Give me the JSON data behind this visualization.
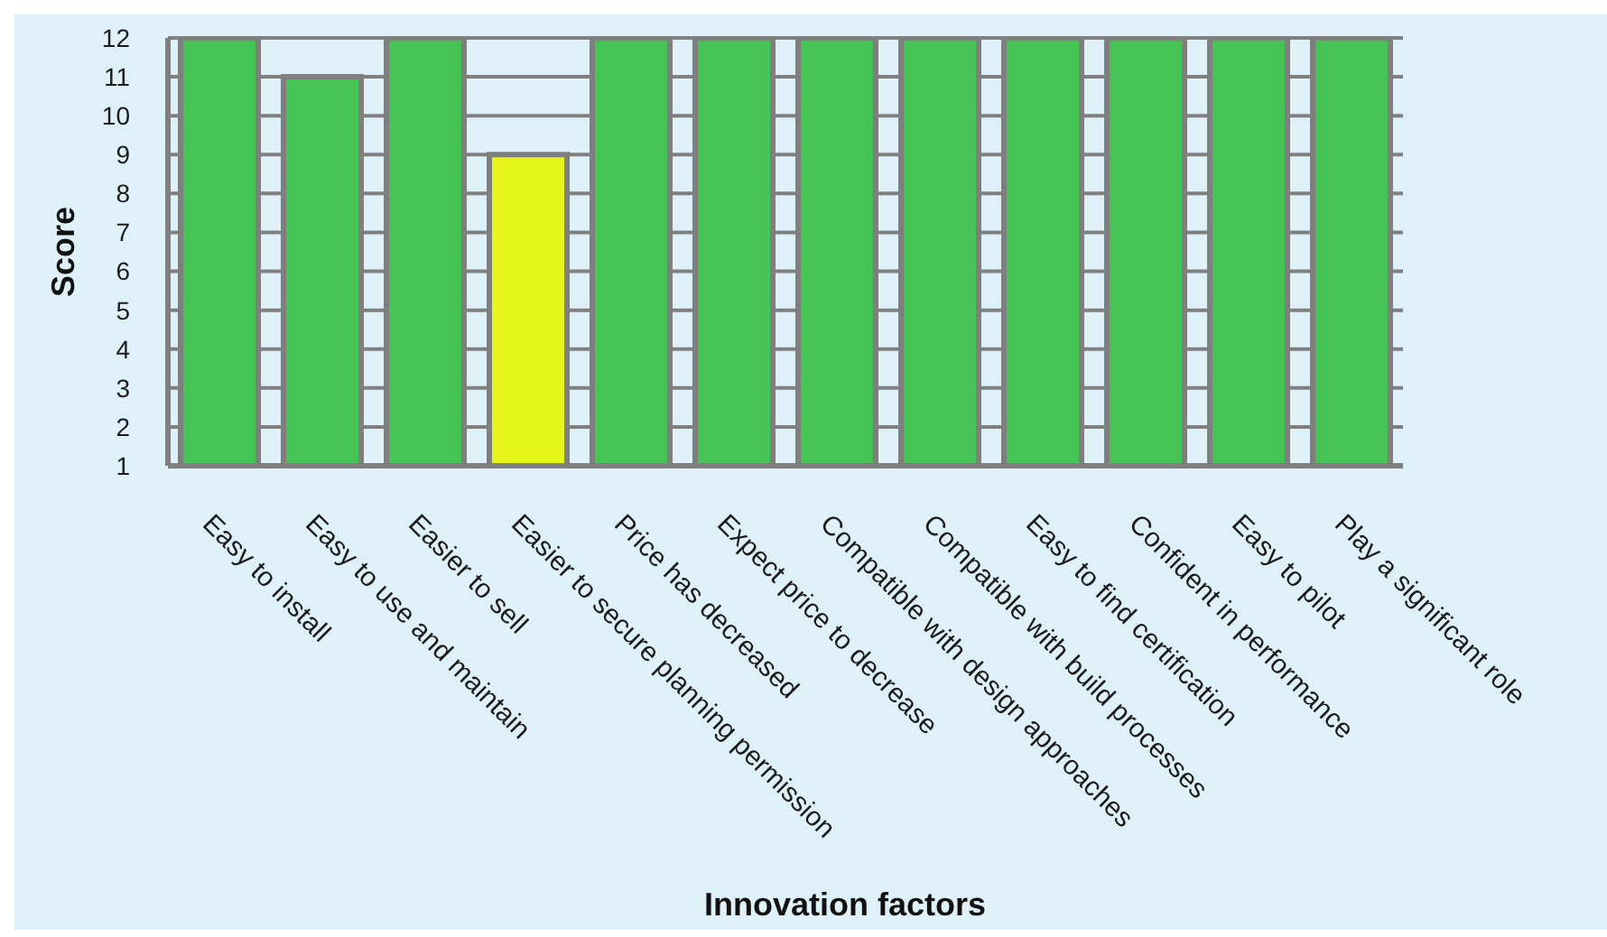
{
  "chart_data": {
    "type": "bar",
    "xlabel": "Innovation factors",
    "ylabel": "Score",
    "categories": [
      "Easy to install",
      "Easy to use and maintain",
      "Easier to sell",
      "Easier to secure planning permission",
      "Price has decreased",
      "Expect price to decrease",
      "Compatible with design approaches",
      "Compatible with build processes",
      "Easy to find certification",
      "Confident in performance",
      "Easy to pilot",
      "Play a significant role"
    ],
    "values": [
      12,
      11,
      12,
      9,
      12,
      12,
      12,
      12,
      12,
      12,
      12,
      12
    ],
    "colors": [
      "#45c455",
      "#45c455",
      "#45c455",
      "#e6f51a",
      "#45c455",
      "#45c455",
      "#45c455",
      "#45c455",
      "#45c455",
      "#45c455",
      "#45c455",
      "#45c455"
    ],
    "ylim": [
      1,
      12
    ],
    "yticks": [
      1,
      2,
      3,
      4,
      5,
      6,
      7,
      8,
      9,
      10,
      11,
      12
    ],
    "grid": "y"
  }
}
